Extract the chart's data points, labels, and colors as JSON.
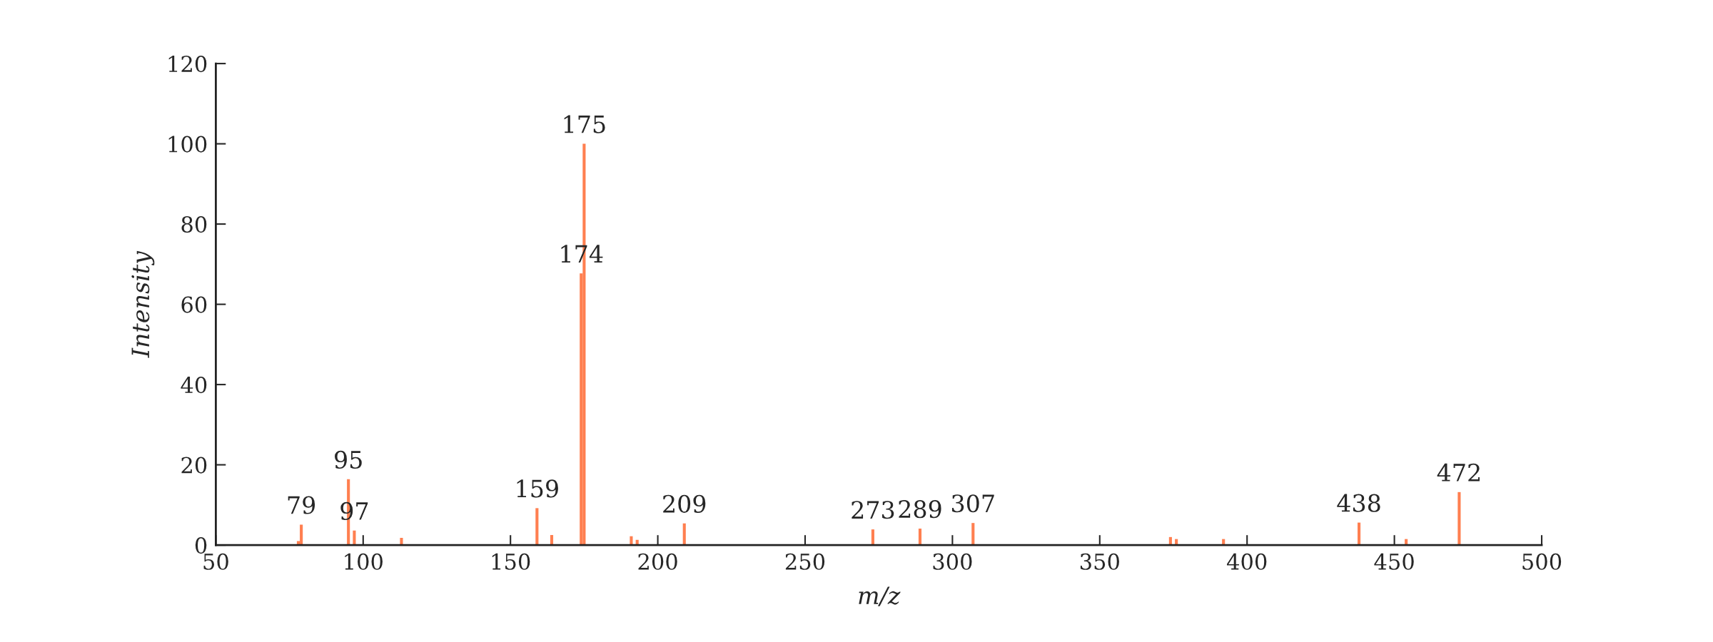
{
  "chart_data": {
    "type": "bar",
    "xlabel": "m/z",
    "ylabel": "Intensity",
    "x": [
      78,
      79,
      95,
      97,
      113,
      159,
      164,
      174,
      175,
      191,
      193,
      209,
      273,
      289,
      307,
      374,
      376,
      392,
      438,
      454,
      472
    ],
    "values": [
      1,
      5.1,
      16.4,
      3.6,
      1.8,
      9.2,
      2.5,
      67.7,
      100,
      2.2,
      1.3,
      5.4,
      3.9,
      4.1,
      5.5,
      2,
      1.5,
      1.5,
      5.6,
      1.5,
      13.2
    ],
    "color": "#ff7f50",
    "xlim": [
      50,
      500
    ],
    "xticks": [
      50,
      100,
      150,
      200,
      250,
      300,
      350,
      400,
      450,
      500
    ],
    "ylim": [
      0,
      120
    ],
    "yticks": [
      0,
      20,
      40,
      60,
      80,
      100,
      120
    ],
    "grid": false,
    "annotations": [
      {
        "text": "79",
        "x": 79,
        "y": 5.1
      },
      {
        "text": "95",
        "x": 95,
        "y": 16.4
      },
      {
        "text": "97",
        "x": 97,
        "y": 3.6
      },
      {
        "text": "159",
        "x": 159,
        "y": 9.2
      },
      {
        "text": "174",
        "x": 174,
        "y": 67.7
      },
      {
        "text": "175",
        "x": 175,
        "y": 100
      },
      {
        "text": "209",
        "x": 209,
        "y": 5.4
      },
      {
        "text": "273",
        "x": 273,
        "y": 3.9
      },
      {
        "text": "289",
        "x": 289,
        "y": 4.1
      },
      {
        "text": "307",
        "x": 307,
        "y": 5.5
      },
      {
        "text": "438",
        "x": 438,
        "y": 5.6
      },
      {
        "text": "472",
        "x": 472,
        "y": 13.2
      }
    ]
  }
}
